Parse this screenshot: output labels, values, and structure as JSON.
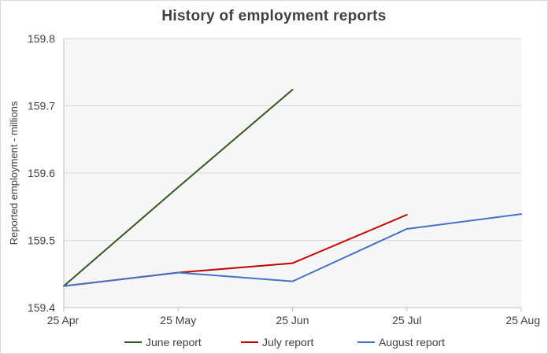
{
  "chart_data": {
    "type": "line",
    "title": "History of employment reports",
    "ylabel": "Reported employment - millions",
    "xlabel": "",
    "categories": [
      "25 Apr",
      "25 May",
      "25 Jun",
      "25 Jul",
      "25 Aug"
    ],
    "ylim": [
      159.4,
      159.8
    ],
    "yticks": [
      "159.4",
      "159.5",
      "159.6",
      "159.7",
      "159.8"
    ],
    "grid": true,
    "legend_position": "bottom",
    "series": [
      {
        "name": "June report",
        "color": "#375623",
        "values": [
          159.432,
          159.579,
          159.724,
          null,
          null
        ]
      },
      {
        "name": "July report",
        "color": "#c00000",
        "values": [
          159.432,
          159.452,
          159.466,
          159.538,
          null
        ]
      },
      {
        "name": "August report",
        "color": "#4472c4",
        "values": [
          159.432,
          159.452,
          159.439,
          159.517,
          159.539
        ]
      }
    ]
  }
}
